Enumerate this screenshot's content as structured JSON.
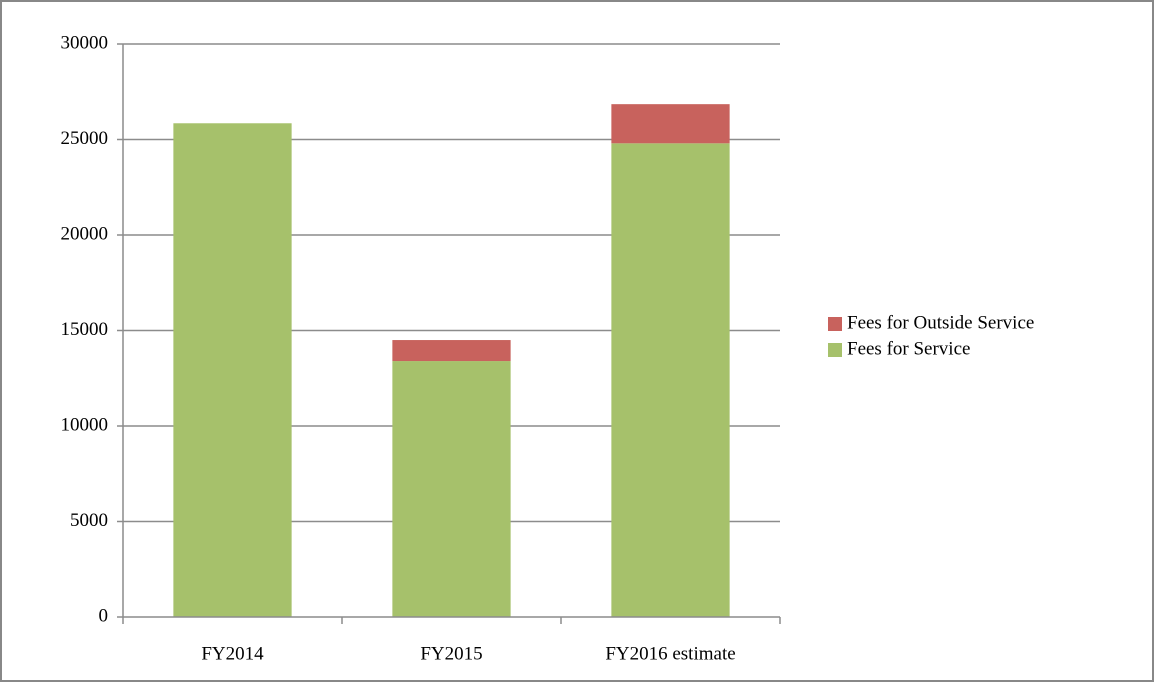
{
  "chart_data": {
    "type": "bar",
    "stacked": true,
    "categories": [
      "FY2014",
      "FY2015",
      "FY2016 estimate"
    ],
    "series": [
      {
        "name": "Fees for Service",
        "color": "#a6c16b",
        "values": [
          25850,
          13400,
          24800
        ]
      },
      {
        "name": "Fees for Outside Service",
        "color": "#c8625d",
        "values": [
          0,
          1100,
          2050
        ]
      }
    ],
    "ylim": [
      0,
      30000
    ],
    "yticks": [
      0,
      5000,
      10000,
      15000,
      20000,
      25000,
      30000
    ],
    "grid": true,
    "legend": "right"
  }
}
